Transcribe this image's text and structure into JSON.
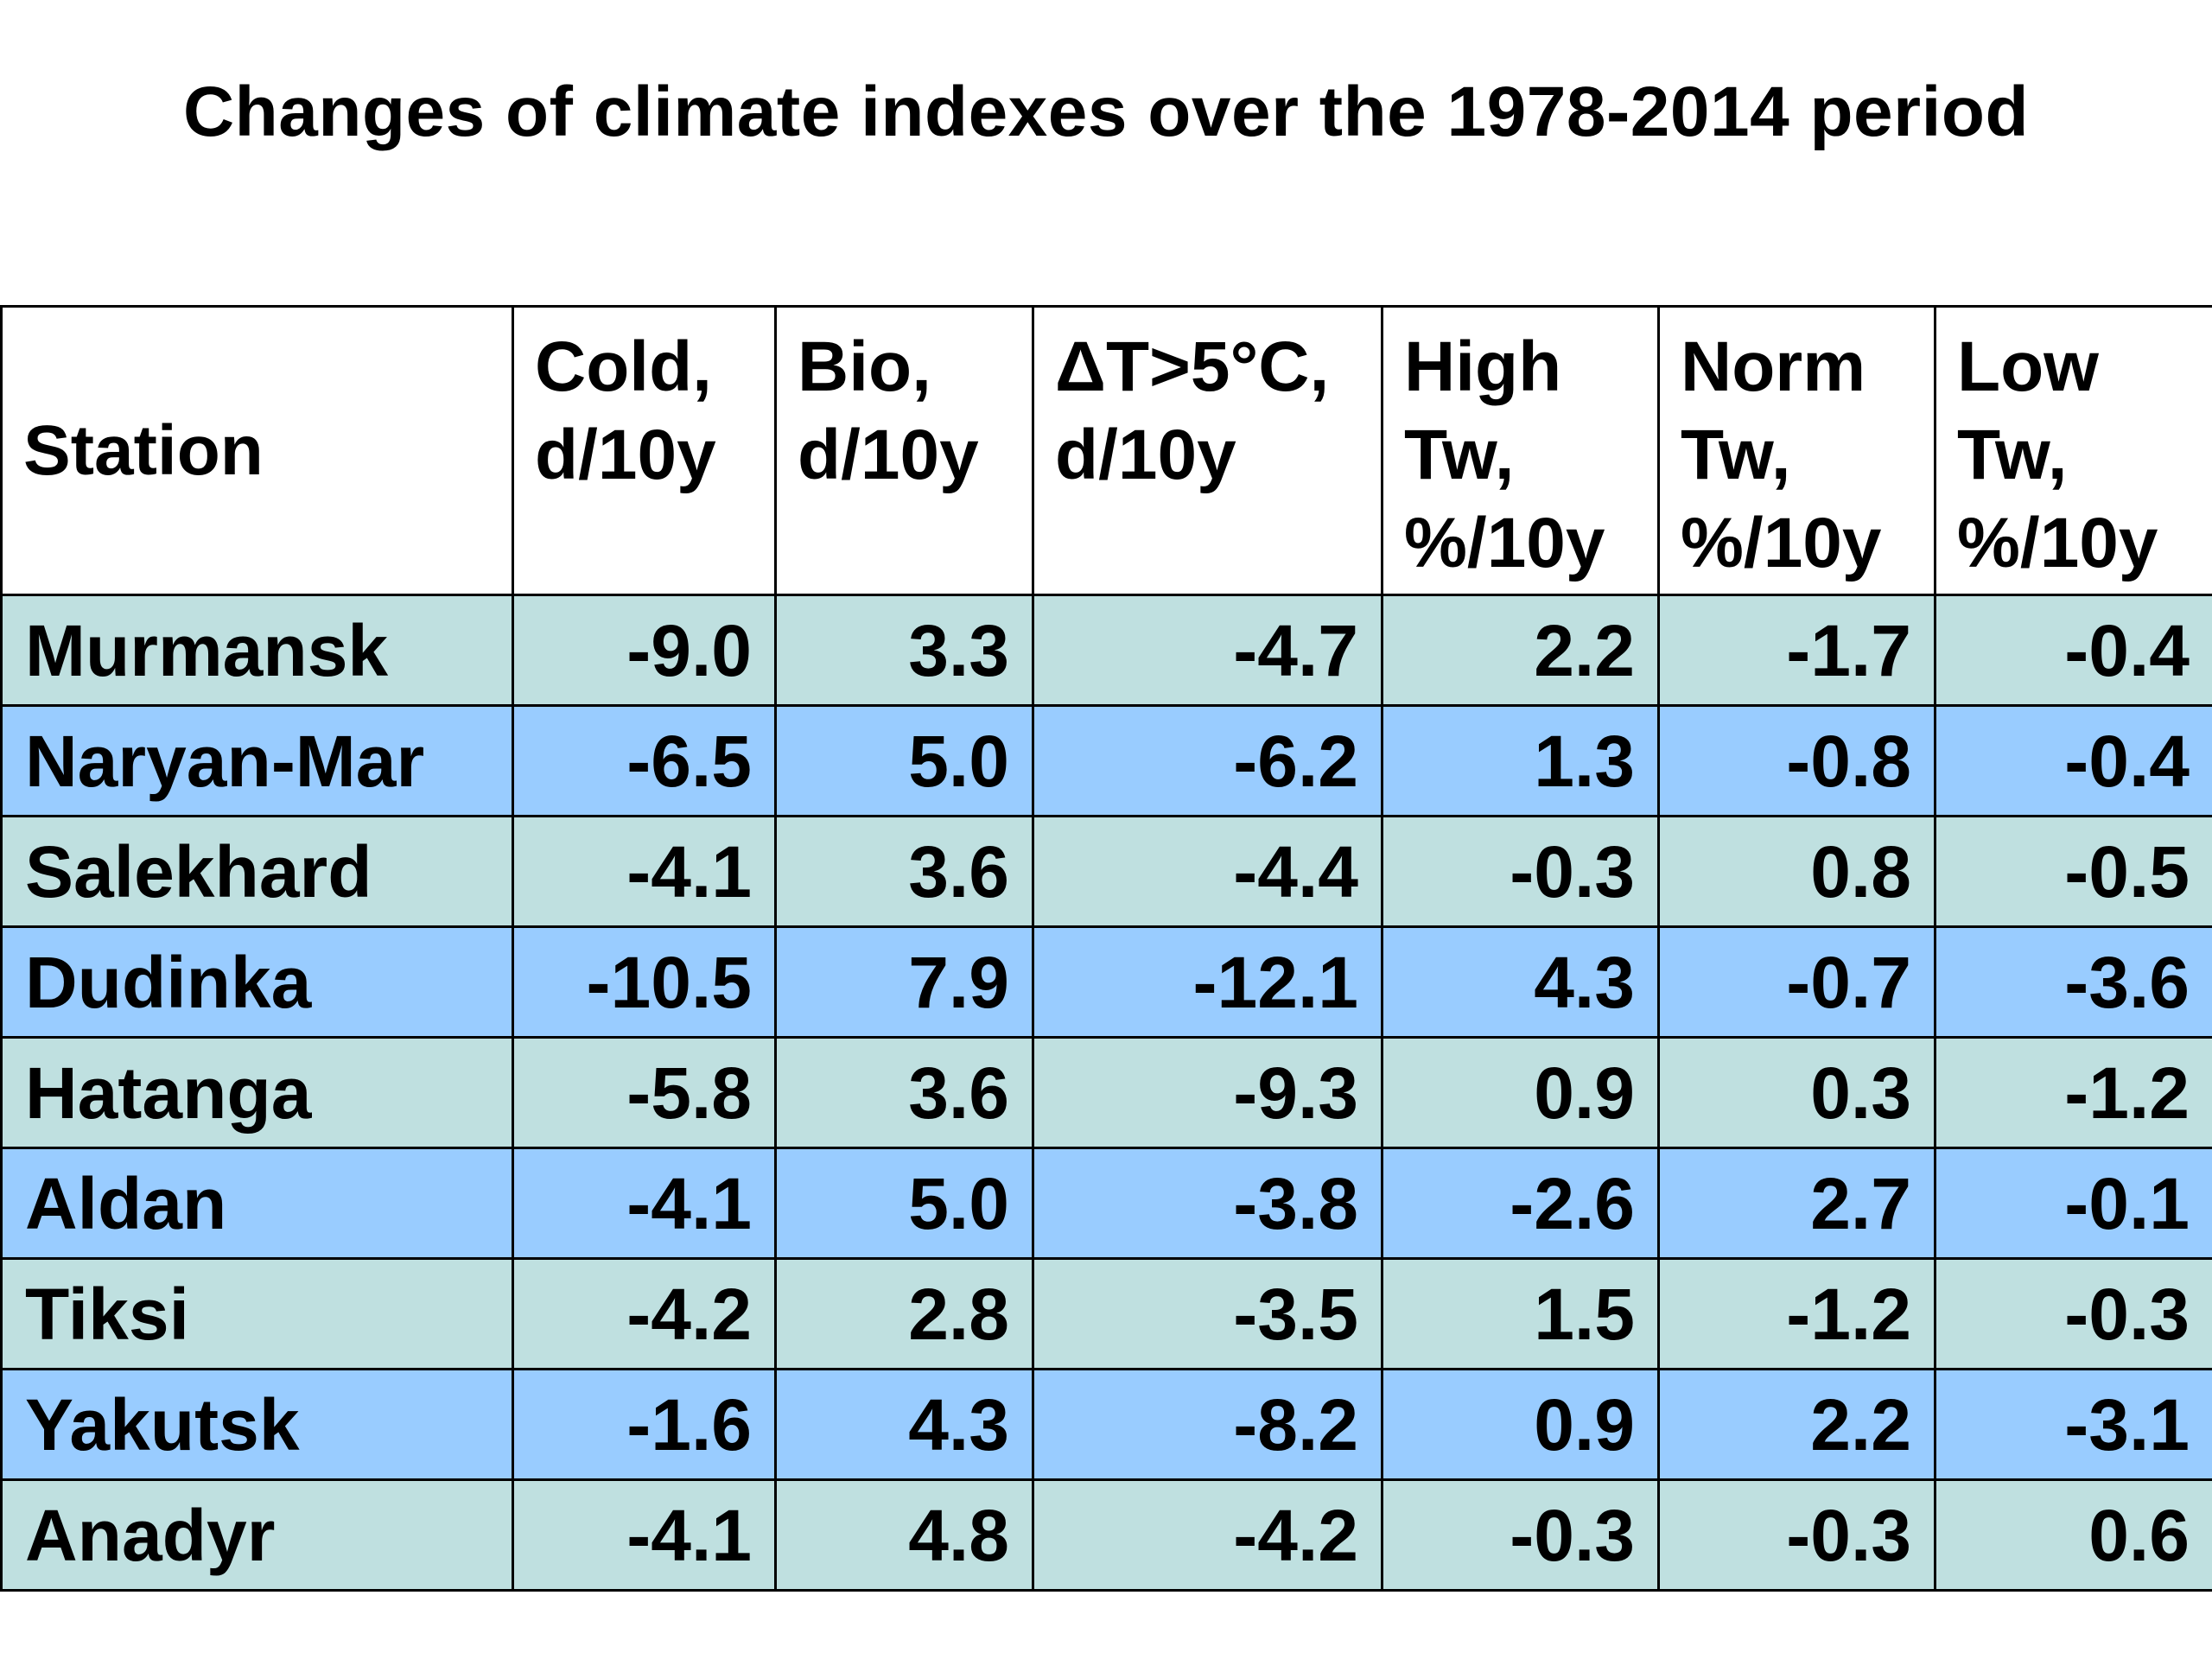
{
  "chart_data": {
    "type": "table",
    "title": "Changes of climate indexes over the 1978-2014 period",
    "columns": [
      [
        "Station"
      ],
      [
        "Cold,",
        "d/10y"
      ],
      [
        "Bio,",
        "d/10y"
      ],
      [
        "ΔT>5°C,",
        "d/10y"
      ],
      [
        "High",
        "Tw,",
        "%/10y"
      ],
      [
        "Norm",
        "Tw,",
        "%/10y"
      ],
      [
        "Low",
        "Tw,",
        "%/10y"
      ]
    ],
    "rows": [
      [
        "Murmansk",
        "-9.0",
        "3.3",
        "-4.7",
        "2.2",
        "-1.7",
        "-0.4"
      ],
      [
        "Naryan-Mar",
        "-6.5",
        "5.0",
        "-6.2",
        "1.3",
        "-0.8",
        "-0.4"
      ],
      [
        "Salekhard",
        "-4.1",
        "3.6",
        "-4.4",
        "-0.3",
        "0.8",
        "-0.5"
      ],
      [
        "Dudinka",
        "-10.5",
        "7.9",
        "-12.1",
        "4.3",
        "-0.7",
        "-3.6"
      ],
      [
        "Hatanga",
        "-5.8",
        "3.6",
        "-9.3",
        "0.9",
        "0.3",
        "-1.2"
      ],
      [
        "Aldan",
        "-4.1",
        "5.0",
        "-3.8",
        "-2.6",
        "2.7",
        "-0.1"
      ],
      [
        "Tiksi",
        "-4.2",
        "2.8",
        "-3.5",
        "1.5",
        "-1.2",
        "-0.3"
      ],
      [
        "Yakutsk",
        "-1.6",
        "4.3",
        "-8.2",
        "0.9",
        "2.2",
        "-3.1"
      ],
      [
        "Anadyr",
        "-4.1",
        "4.8",
        "-4.2",
        "-0.3",
        "-0.3",
        "0.6"
      ]
    ],
    "row_colors": [
      "#bfe0e0",
      "#99ccff"
    ]
  }
}
